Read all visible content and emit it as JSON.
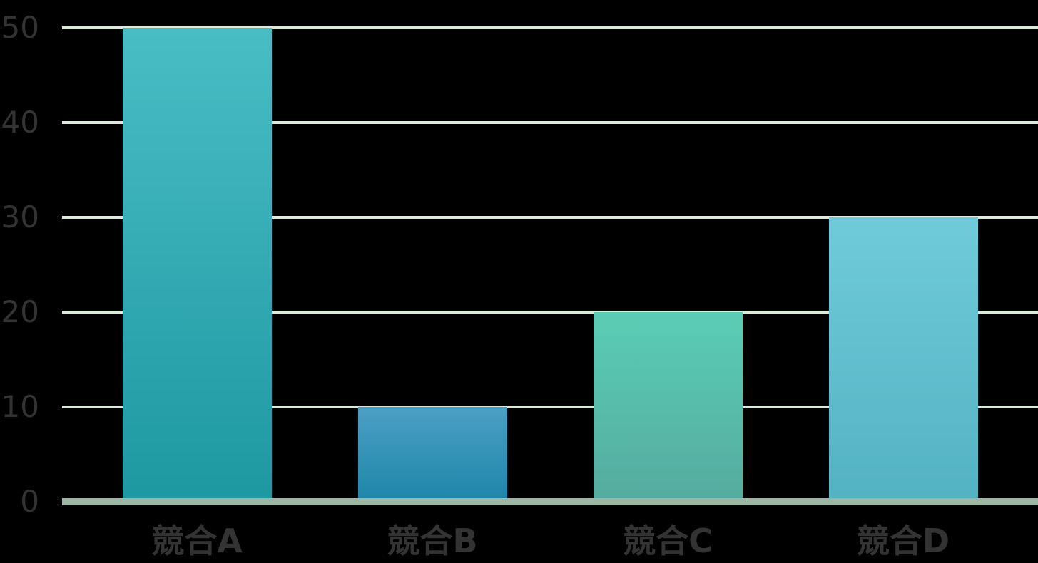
{
  "chart_data": {
    "type": "bar",
    "title": "",
    "xlabel": "",
    "ylabel": "",
    "categories": [
      "競合A",
      "競合B",
      "競合C",
      "競合D"
    ],
    "values": [
      50,
      10,
      20,
      30
    ],
    "yticks": [
      0,
      10,
      20,
      30,
      40,
      50
    ],
    "ylim": [
      0,
      50
    ],
    "grid": true,
    "legend": false,
    "styles": {
      "background": "#000000",
      "text_color": "#333333",
      "gridline_color": "#dcead9",
      "axis_line_color": "#9cb5a4",
      "bar_gradients": [
        {
          "top": "#4abdc4",
          "bottom": "#1d98a1"
        },
        {
          "top": "#4b9fc5",
          "bottom": "#1e86a9"
        },
        {
          "top": "#5acdb5",
          "bottom": "#55ab9f"
        },
        {
          "top": "#6fcbd9",
          "bottom": "#53b2c2"
        }
      ]
    }
  }
}
